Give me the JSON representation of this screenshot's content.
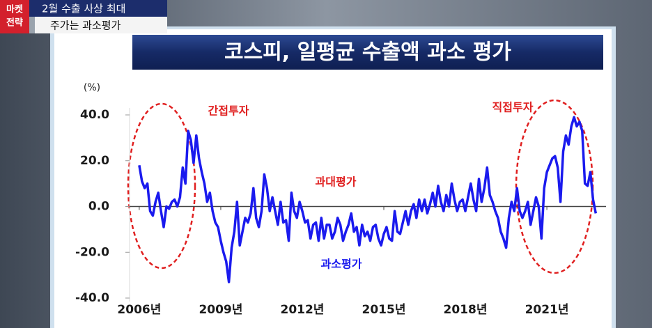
{
  "banner": {
    "badge": [
      "마켓",
      "전략"
    ],
    "headline": "2월 수출 사상 최대",
    "subline": "주가는 과소평가"
  },
  "chart_data": {
    "type": "line",
    "title": "코스피, 일평균 수출액 과소 평가",
    "y_unit": "(%)",
    "annotations": [
      {
        "text": "간접투자",
        "color": "#e02020"
      },
      {
        "text": "직접투자",
        "color": "#e02020"
      },
      {
        "text": "과대평가",
        "color": "#e02020"
      },
      {
        "text": "과소평가",
        "color": "#1a1aee"
      }
    ],
    "color": "#1a1aee",
    "x": [
      2006.0,
      2006.1,
      2006.2,
      2006.3,
      2006.4,
      2006.5,
      2006.6,
      2006.7,
      2006.8,
      2006.9,
      2007.0,
      2007.1,
      2007.2,
      2007.3,
      2007.4,
      2007.5,
      2007.6,
      2007.7,
      2007.8,
      2007.9,
      2008.0,
      2008.1,
      2008.2,
      2008.3,
      2008.4,
      2008.5,
      2008.6,
      2008.7,
      2008.8,
      2008.9,
      2009.0,
      2009.1,
      2009.2,
      2009.3,
      2009.4,
      2009.5,
      2009.6,
      2009.7,
      2009.8,
      2009.9,
      2010.0,
      2010.1,
      2010.2,
      2010.3,
      2010.4,
      2010.5,
      2010.6,
      2010.7,
      2010.8,
      2010.9,
      2011.0,
      2011.1,
      2011.2,
      2011.3,
      2011.4,
      2011.5,
      2011.6,
      2011.7,
      2011.8,
      2011.9,
      2012.0,
      2012.1,
      2012.2,
      2012.3,
      2012.4,
      2012.5,
      2012.6,
      2012.7,
      2012.8,
      2012.9,
      2013.0,
      2013.1,
      2013.2,
      2013.3,
      2013.4,
      2013.5,
      2013.6,
      2013.7,
      2013.8,
      2013.9,
      2014.0,
      2014.1,
      2014.2,
      2014.3,
      2014.4,
      2014.5,
      2014.6,
      2014.7,
      2014.8,
      2014.9,
      2015.0,
      2015.1,
      2015.2,
      2015.3,
      2015.4,
      2015.5,
      2015.6,
      2015.7,
      2015.8,
      2015.9,
      2016.0,
      2016.1,
      2016.2,
      2016.3,
      2016.4,
      2016.5,
      2016.6,
      2016.7,
      2016.8,
      2016.9,
      2017.0,
      2017.1,
      2017.2,
      2017.3,
      2017.4,
      2017.5,
      2017.6,
      2017.7,
      2017.8,
      2017.9,
      2018.0,
      2018.1,
      2018.2,
      2018.3,
      2018.4,
      2018.5,
      2018.6,
      2018.7,
      2018.8,
      2018.9,
      2019.0,
      2019.1,
      2019.2,
      2019.3,
      2019.4,
      2019.5,
      2019.6,
      2019.7,
      2019.8,
      2019.9,
      2020.0,
      2020.1,
      2020.2,
      2020.3,
      2020.4,
      2020.5,
      2020.6,
      2020.7,
      2020.8,
      2020.9,
      2021.0,
      2021.1,
      2021.2,
      2021.3,
      2021.4,
      2021.5,
      2021.6,
      2021.7,
      2021.8,
      2021.9,
      2022.0,
      2022.1,
      2022.2,
      2022.3,
      2022.4,
      2022.5,
      2022.6,
      2022.7,
      2022.8
    ],
    "values": [
      18,
      11,
      8,
      10,
      -2,
      -4,
      2,
      6,
      -2,
      -9,
      0,
      -1,
      2,
      3,
      0,
      4,
      17,
      10,
      33,
      29,
      19,
      31,
      21,
      15,
      10,
      2,
      6,
      -2,
      -7,
      -9,
      -15,
      -20,
      -24,
      -33,
      -18,
      -11,
      2,
      -17,
      -11,
      -5,
      -7,
      -3,
      8,
      -5,
      -9,
      -2,
      14,
      8,
      -2,
      4,
      -2,
      -8,
      2,
      -7,
      -6,
      -15,
      6,
      -2,
      -5,
      2,
      -2,
      -7,
      -6,
      -14,
      -8,
      -7,
      -15,
      -5,
      -14,
      -8,
      -8,
      -14,
      -11,
      -5,
      -8,
      -15,
      -11,
      -8,
      -3,
      -11,
      -9,
      -17,
      -8,
      -13,
      -11,
      -15,
      -9,
      -8,
      -14,
      -17,
      -12,
      -9,
      -14,
      -15,
      -2,
      -11,
      -12,
      -7,
      -2,
      -8,
      -2,
      1,
      -5,
      3,
      -2,
      3,
      -3,
      1,
      6,
      0,
      9,
      2,
      -2,
      5,
      0,
      10,
      3,
      -2,
      2,
      3,
      -2,
      4,
      10,
      3,
      -2,
      12,
      2,
      8,
      17,
      5,
      2,
      -2,
      -5,
      -11,
      -14,
      -18,
      -5,
      2,
      -2,
      8,
      -2,
      -5,
      -2,
      2,
      -8,
      -2,
      4,
      0,
      -14,
      8,
      15,
      18,
      21,
      22,
      17,
      2,
      24,
      31,
      27,
      35,
      39,
      35,
      37,
      33,
      10,
      9,
      15,
      3,
      -3
    ],
    "xlim": [
      2005.9,
      2023.1
    ],
    "xticks": [
      {
        "value": 2006,
        "label": "2006년"
      },
      {
        "value": 2009,
        "label": "2009년"
      },
      {
        "value": 2012,
        "label": "2012년"
      },
      {
        "value": 2015,
        "label": "2015년"
      },
      {
        "value": 2018,
        "label": "2018년"
      },
      {
        "value": 2021,
        "label": "2021년"
      }
    ],
    "ylim": [
      -40,
      40
    ],
    "yticks": [
      {
        "value": 40,
        "label": "40.0"
      },
      {
        "value": 20,
        "label": "20.0"
      },
      {
        "value": 0,
        "label": "0.0"
      },
      {
        "value": -20,
        "label": "-20.0"
      },
      {
        "value": -40,
        "label": "-40.0"
      }
    ]
  }
}
